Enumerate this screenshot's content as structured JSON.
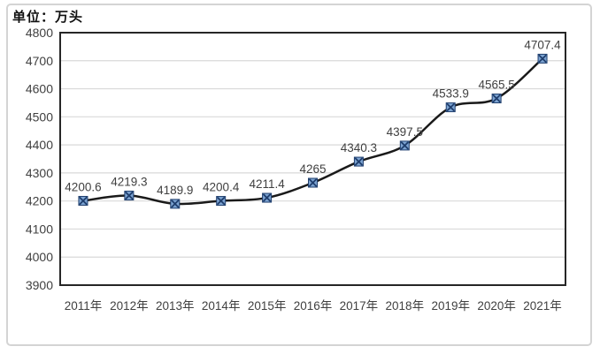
{
  "chart_data": {
    "type": "line",
    "title": "单位：万头",
    "categories": [
      "2011年",
      "2012年",
      "2013年",
      "2014年",
      "2015年",
      "2016年",
      "2017年",
      "2018年",
      "2019年",
      "2020年",
      "2021年"
    ],
    "values": [
      4200.6,
      4219.3,
      4189.9,
      4200.4,
      4211.4,
      4265,
      4340.3,
      4397.5,
      4533.9,
      4565.5,
      4707.4
    ],
    "value_labels": [
      "4200.6",
      "4219.3",
      "4189.9",
      "4200.4",
      "4211.4",
      "4265",
      "4340.3",
      "4397.5",
      "4533.9",
      "4565.5",
      "4707.4"
    ],
    "ylim": [
      3900,
      4800
    ],
    "ytick_step": 100,
    "grid": true,
    "legend_position": "none",
    "marker_shape": "x-square",
    "colors": {
      "line": "#1a1a1a",
      "marker_fill": "#7da4d2",
      "marker_stroke": "#1f3e6d",
      "gridline": "#d9d9d9",
      "plot_border": "#262626",
      "axis_text": "#404040",
      "data_label_text": "#404040",
      "title_text": "#111111",
      "frame_border": "#d4d4d4"
    }
  }
}
